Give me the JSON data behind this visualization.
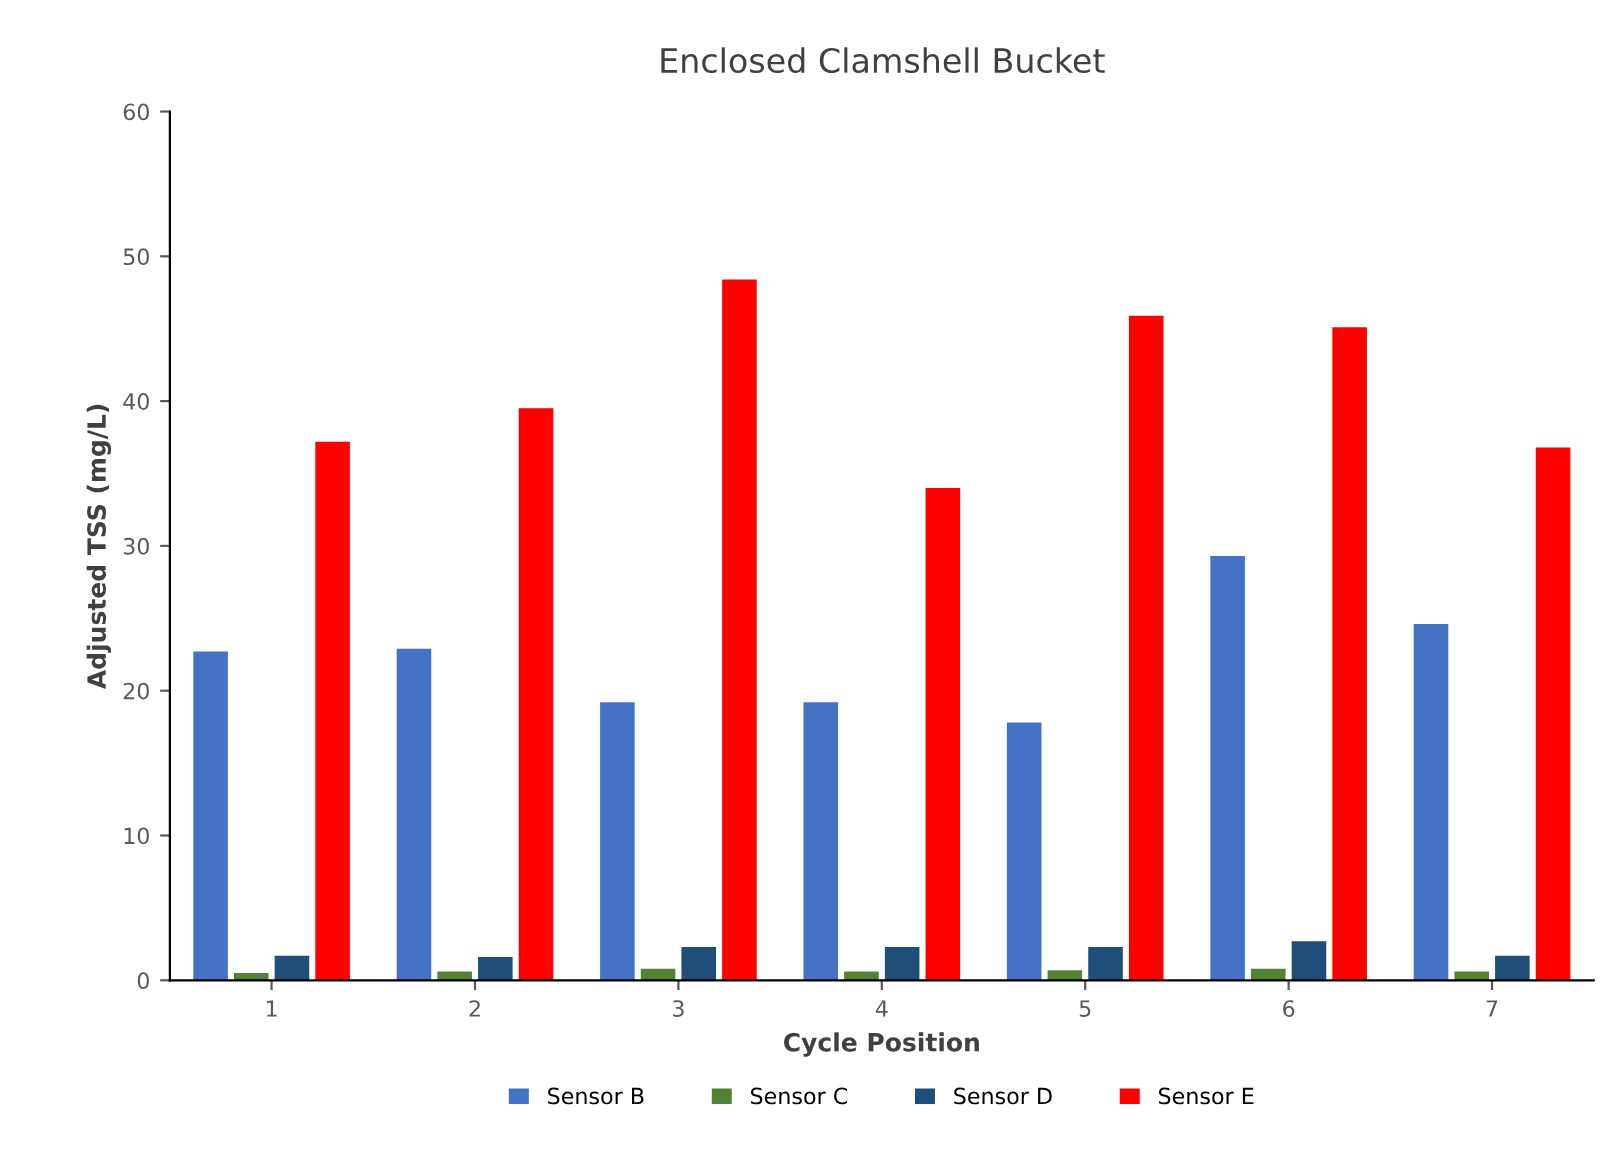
{
  "chart_data": {
    "type": "bar",
    "title": "Enclosed Clamshell Bucket",
    "xlabel": "Cycle Position",
    "ylabel": "Adjusted TSS (mg/L)",
    "categories": [
      "1",
      "2",
      "3",
      "4",
      "5",
      "6",
      "7"
    ],
    "series": [
      {
        "name": "Sensor B",
        "color": "#4472c4",
        "values": [
          22.7,
          22.9,
          19.2,
          19.2,
          17.8,
          29.3,
          24.6
        ]
      },
      {
        "name": "Sensor C",
        "color": "#548235",
        "values": [
          0.5,
          0.6,
          0.8,
          0.6,
          0.7,
          0.8,
          0.6
        ]
      },
      {
        "name": "Sensor D",
        "color": "#1f4e79",
        "values": [
          1.7,
          1.6,
          2.3,
          2.3,
          2.3,
          2.7,
          1.7
        ]
      },
      {
        "name": "Sensor E",
        "color": "#ff0000",
        "values": [
          37.2,
          39.5,
          48.4,
          34.0,
          45.9,
          45.1,
          36.8
        ]
      }
    ],
    "ylim": [
      0,
      60
    ],
    "yticks": [
      0,
      10,
      20,
      30,
      40,
      50,
      60
    ],
    "grid": false,
    "legend": "bottom"
  }
}
